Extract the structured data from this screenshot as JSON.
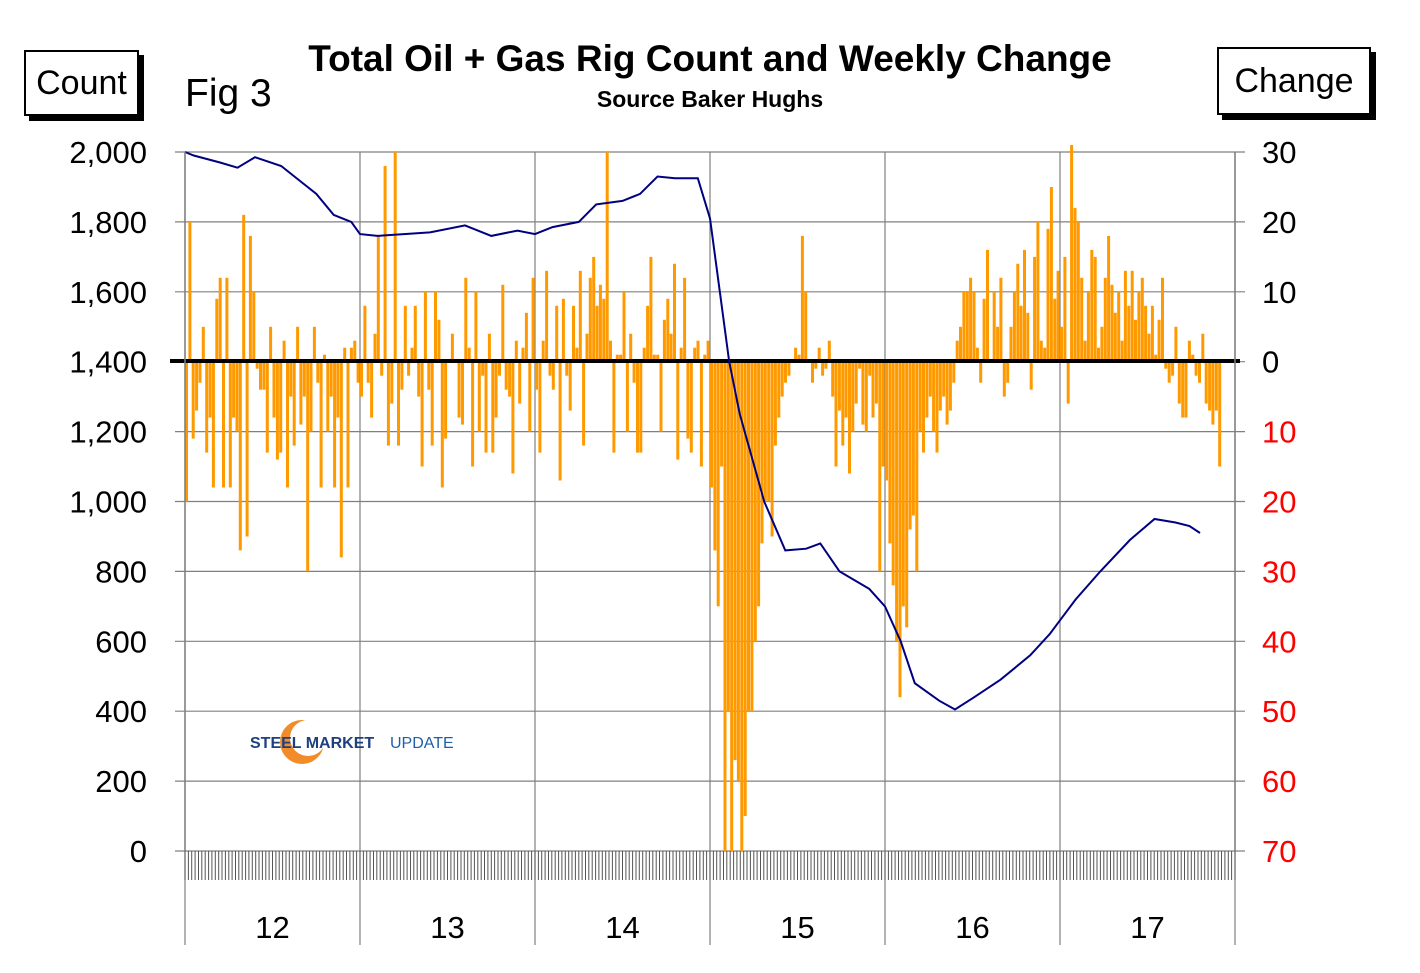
{
  "chart_data": {
    "type": "bar+line",
    "title": "Total Oil + Gas Rig Count and Weekly Change",
    "subtitle": "Source Baker Hughs",
    "figure_label": "Fig 3",
    "left_axis_label": "Count",
    "right_axis_label": "Change",
    "left_ylim": [
      0,
      2000
    ],
    "left_ticks": [
      "2,000",
      "1,800",
      "1,600",
      "1,400",
      "1,200",
      "1,000",
      "800",
      "600",
      "400",
      "200",
      "0"
    ],
    "right_ylim": [
      -70,
      30
    ],
    "right_ticks": [
      {
        "label": "30",
        "color": "#000000"
      },
      {
        "label": "20",
        "color": "#000000"
      },
      {
        "label": "10",
        "color": "#000000"
      },
      {
        "label": "0",
        "color": "#000000"
      },
      {
        "label": "10",
        "color": "#FF0000"
      },
      {
        "label": "20",
        "color": "#FF0000"
      },
      {
        "label": "30",
        "color": "#FF0000"
      },
      {
        "label": "40",
        "color": "#FF0000"
      },
      {
        "label": "50",
        "color": "#FF0000"
      },
      {
        "label": "60",
        "color": "#FF0000"
      },
      {
        "label": "70",
        "color": "#FF0000"
      }
    ],
    "x_ticks": [
      "12",
      "13",
      "14",
      "15",
      "16",
      "17"
    ],
    "grid": true,
    "colors": {
      "count_line": "#000080",
      "change_bars": "#FF9900",
      "zero_line": "#000000",
      "grid": "#808080"
    },
    "count_series": {
      "axis": "left",
      "points": [
        [
          2012.0,
          2000
        ],
        [
          2012.05,
          1990
        ],
        [
          2012.2,
          1970
        ],
        [
          2012.3,
          1955
        ],
        [
          2012.4,
          1985
        ],
        [
          2012.55,
          1960
        ],
        [
          2012.65,
          1920
        ],
        [
          2012.75,
          1880
        ],
        [
          2012.85,
          1820
        ],
        [
          2012.95,
          1800
        ],
        [
          2013.0,
          1765
        ],
        [
          2013.1,
          1760
        ],
        [
          2013.25,
          1765
        ],
        [
          2013.4,
          1770
        ],
        [
          2013.6,
          1790
        ],
        [
          2013.75,
          1760
        ],
        [
          2013.9,
          1775
        ],
        [
          2014.0,
          1765
        ],
        [
          2014.1,
          1785
        ],
        [
          2014.25,
          1800
        ],
        [
          2014.35,
          1850
        ],
        [
          2014.5,
          1860
        ],
        [
          2014.6,
          1880
        ],
        [
          2014.7,
          1930
        ],
        [
          2014.8,
          1925
        ],
        [
          2014.93,
          1925
        ],
        [
          2015.0,
          1810
        ],
        [
          2015.11,
          1400
        ],
        [
          2015.17,
          1250
        ],
        [
          2015.31,
          1000
        ],
        [
          2015.43,
          860
        ],
        [
          2015.55,
          865
        ],
        [
          2015.63,
          880
        ],
        [
          2015.74,
          800
        ],
        [
          2015.91,
          750
        ],
        [
          2016.0,
          700
        ],
        [
          2016.09,
          600
        ],
        [
          2016.17,
          480
        ],
        [
          2016.31,
          430
        ],
        [
          2016.4,
          405
        ],
        [
          2016.51,
          440
        ],
        [
          2016.66,
          490
        ],
        [
          2016.83,
          560
        ],
        [
          2016.94,
          620
        ],
        [
          2017.0,
          660
        ],
        [
          2017.09,
          720
        ],
        [
          2017.23,
          800
        ],
        [
          2017.4,
          890
        ],
        [
          2017.54,
          950
        ],
        [
          2017.66,
          940
        ],
        [
          2017.74,
          930
        ],
        [
          2017.8,
          910
        ]
      ]
    },
    "weekly_change": {
      "axis": "right",
      "by_year": {
        "2012": [
          -20,
          20,
          -11,
          -7,
          -3,
          5,
          -13,
          -8,
          -18,
          9,
          12,
          -18,
          12,
          -18,
          -8,
          -10,
          -27,
          21,
          -25,
          18,
          10,
          -1,
          -4,
          -4,
          -13,
          5,
          -8,
          -14,
          -13,
          3,
          -18,
          -5,
          -12,
          5,
          -9,
          -5,
          -30,
          -10,
          5,
          -3,
          -18,
          1,
          -10,
          -5,
          -18,
          -8,
          -28,
          2,
          -18,
          2,
          3,
          -3
        ],
        "2013": [
          -5,
          8,
          -3,
          -8,
          4,
          18,
          -2,
          28,
          -12,
          -6,
          30,
          -12,
          -4,
          8,
          -2,
          2,
          8,
          -5,
          -15,
          10,
          -4,
          -12,
          10,
          6,
          -18,
          -11,
          0,
          4,
          0,
          -8,
          -9,
          12,
          2,
          -15,
          10,
          -10,
          -2,
          -13,
          4,
          -13,
          -8,
          -2,
          11,
          -4,
          -5,
          -16,
          3,
          -6,
          2,
          7,
          -10,
          12
        ],
        "2014": [
          -4,
          -13,
          3,
          13,
          -2,
          -4,
          8,
          -17,
          9,
          -2,
          -7,
          8,
          2,
          13,
          -12,
          4,
          12,
          15,
          8,
          11,
          9,
          30,
          3,
          -13,
          1,
          1,
          10,
          -10,
          4,
          -3,
          -13,
          -13,
          2,
          8,
          15,
          1,
          1,
          -10,
          6,
          9,
          4,
          14,
          -14,
          2,
          12,
          -11,
          -13,
          2,
          3,
          -15,
          1,
          3
        ],
        "2015": [
          -18,
          -27,
          -35,
          -15,
          -70,
          -50,
          -70,
          -57,
          -60,
          -70,
          -65,
          -50,
          -50,
          -40,
          -35,
          -26,
          -20,
          -20,
          -25,
          -12,
          -8,
          -5,
          -3,
          -2,
          0,
          2,
          1,
          18,
          10,
          0,
          -3,
          -1,
          2,
          -2,
          -1,
          3,
          -5,
          -15,
          -7,
          -12,
          -8,
          -16,
          -10,
          -6,
          -1,
          -9,
          -10,
          -2,
          -8,
          -6,
          -30,
          -15
        ],
        "2016": [
          -17,
          -26,
          -32,
          -40,
          -48,
          -35,
          -38,
          -24,
          -22,
          -30,
          -10,
          -13,
          -8,
          -5,
          -10,
          -13,
          -7,
          -5,
          -9,
          -7,
          -3,
          3,
          5,
          10,
          10,
          12,
          10,
          2,
          -3,
          9,
          16,
          0,
          10,
          5,
          12,
          -5,
          -3,
          5,
          10,
          14,
          8,
          16,
          7,
          -4,
          15,
          20,
          3,
          2,
          19,
          25,
          9,
          13
        ],
        "2017": [
          5,
          15,
          -6,
          31,
          22,
          20,
          12,
          3,
          10,
          16,
          15,
          2,
          5,
          12,
          18,
          11,
          7,
          10,
          3,
          13,
          8,
          13,
          6,
          10,
          12,
          8,
          4,
          8,
          1,
          6,
          12,
          -1,
          -3,
          -2,
          5,
          -6,
          -8,
          -8,
          3,
          1,
          -2,
          -3,
          4,
          -6,
          -7,
          -9,
          -7,
          -15
        ]
      }
    }
  },
  "logo": {
    "text_bold": "STEEL MARKET",
    "text_light": "UPDATE"
  }
}
